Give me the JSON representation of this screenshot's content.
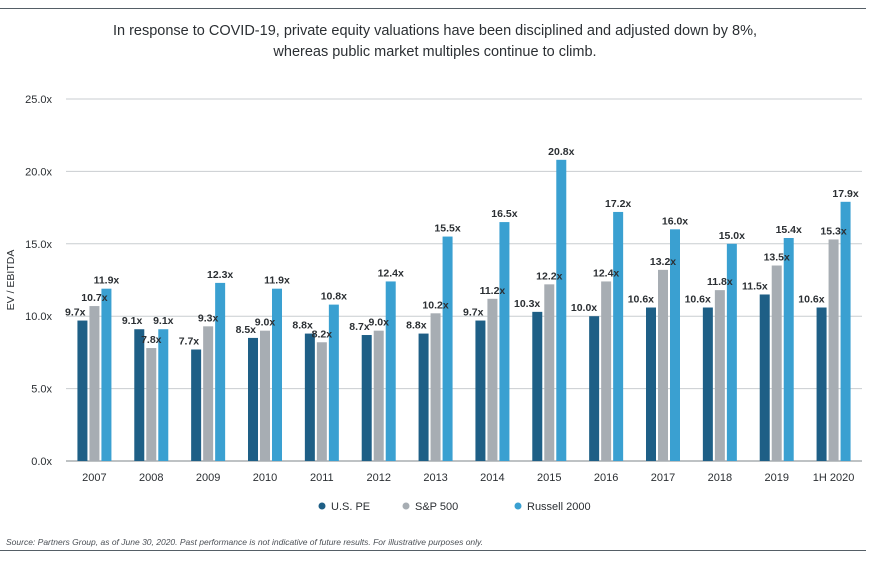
{
  "header": {
    "title_line1": "In response to COVID-19, private equity valuations have been disciplined and adjusted down by 8%,",
    "title_line2": "whereas public market multiples continue to climb."
  },
  "footer": {
    "source": "Source: Partners Group, as of June 30, 2020. Past performance is not indicative of future results. For illustrative purposes only."
  },
  "chart_data": {
    "type": "bar",
    "title": "In response to COVID-19, private equity valuations have been disciplined and adjusted down by 8%, whereas public market multiples continue to climb.",
    "xlabel": "",
    "ylabel": "EV / EBITDA",
    "ylim": [
      0,
      25
    ],
    "yticks": [
      0,
      5,
      10,
      15,
      20,
      25
    ],
    "ytick_labels": [
      "0.0x",
      "5.0x",
      "10.0x",
      "15.0x",
      "20.0x",
      "25.0x"
    ],
    "grid": true,
    "legend_position": "bottom",
    "categories": [
      "2007",
      "2008",
      "2009",
      "2010",
      "2011",
      "2012",
      "2013",
      "2014",
      "2015",
      "2016",
      "2017",
      "2018",
      "2019",
      "1H 2020"
    ],
    "series": [
      {
        "name": "U.S. PE",
        "color": "#1e5f86",
        "values": [
          9.7,
          9.1,
          7.7,
          8.5,
          8.8,
          8.7,
          8.8,
          9.7,
          10.3,
          10.0,
          10.6,
          10.6,
          11.5,
          10.6
        ],
        "labels": [
          "9.7x",
          "9.1x",
          "7.7x",
          "8.5x",
          "8.8x",
          "8.7x",
          "8.8x",
          "9.7x",
          "10.3x",
          "10.0x",
          "10.6x",
          "10.6x",
          "11.5x",
          "10.6x"
        ]
      },
      {
        "name": "S&P 500",
        "color": "#a7adb3",
        "values": [
          10.7,
          7.8,
          9.3,
          9.0,
          8.2,
          9.0,
          10.2,
          11.2,
          12.2,
          12.4,
          13.2,
          11.8,
          13.5,
          15.3
        ],
        "labels": [
          "10.7x",
          "7.8x",
          "9.3x",
          "9.0x",
          "8.2x",
          "9.0x",
          "10.2x",
          "11.2x",
          "12.2x",
          "12.4x",
          "13.2x",
          "11.8x",
          "13.5x",
          "15.3x"
        ]
      },
      {
        "name": "Russell 2000",
        "color": "#3aa0d1",
        "values": [
          11.9,
          9.1,
          12.3,
          11.9,
          10.8,
          12.4,
          15.5,
          16.5,
          20.8,
          17.2,
          16.0,
          15.0,
          15.4,
          17.9
        ],
        "labels": [
          "11.9x",
          "9.1x",
          "12.3x",
          "11.9x",
          "10.8x",
          "12.4x",
          "15.5x",
          "16.5x",
          "20.8x",
          "17.2x",
          "16.0x",
          "15.0x",
          "15.4x",
          "17.9x"
        ]
      }
    ]
  }
}
